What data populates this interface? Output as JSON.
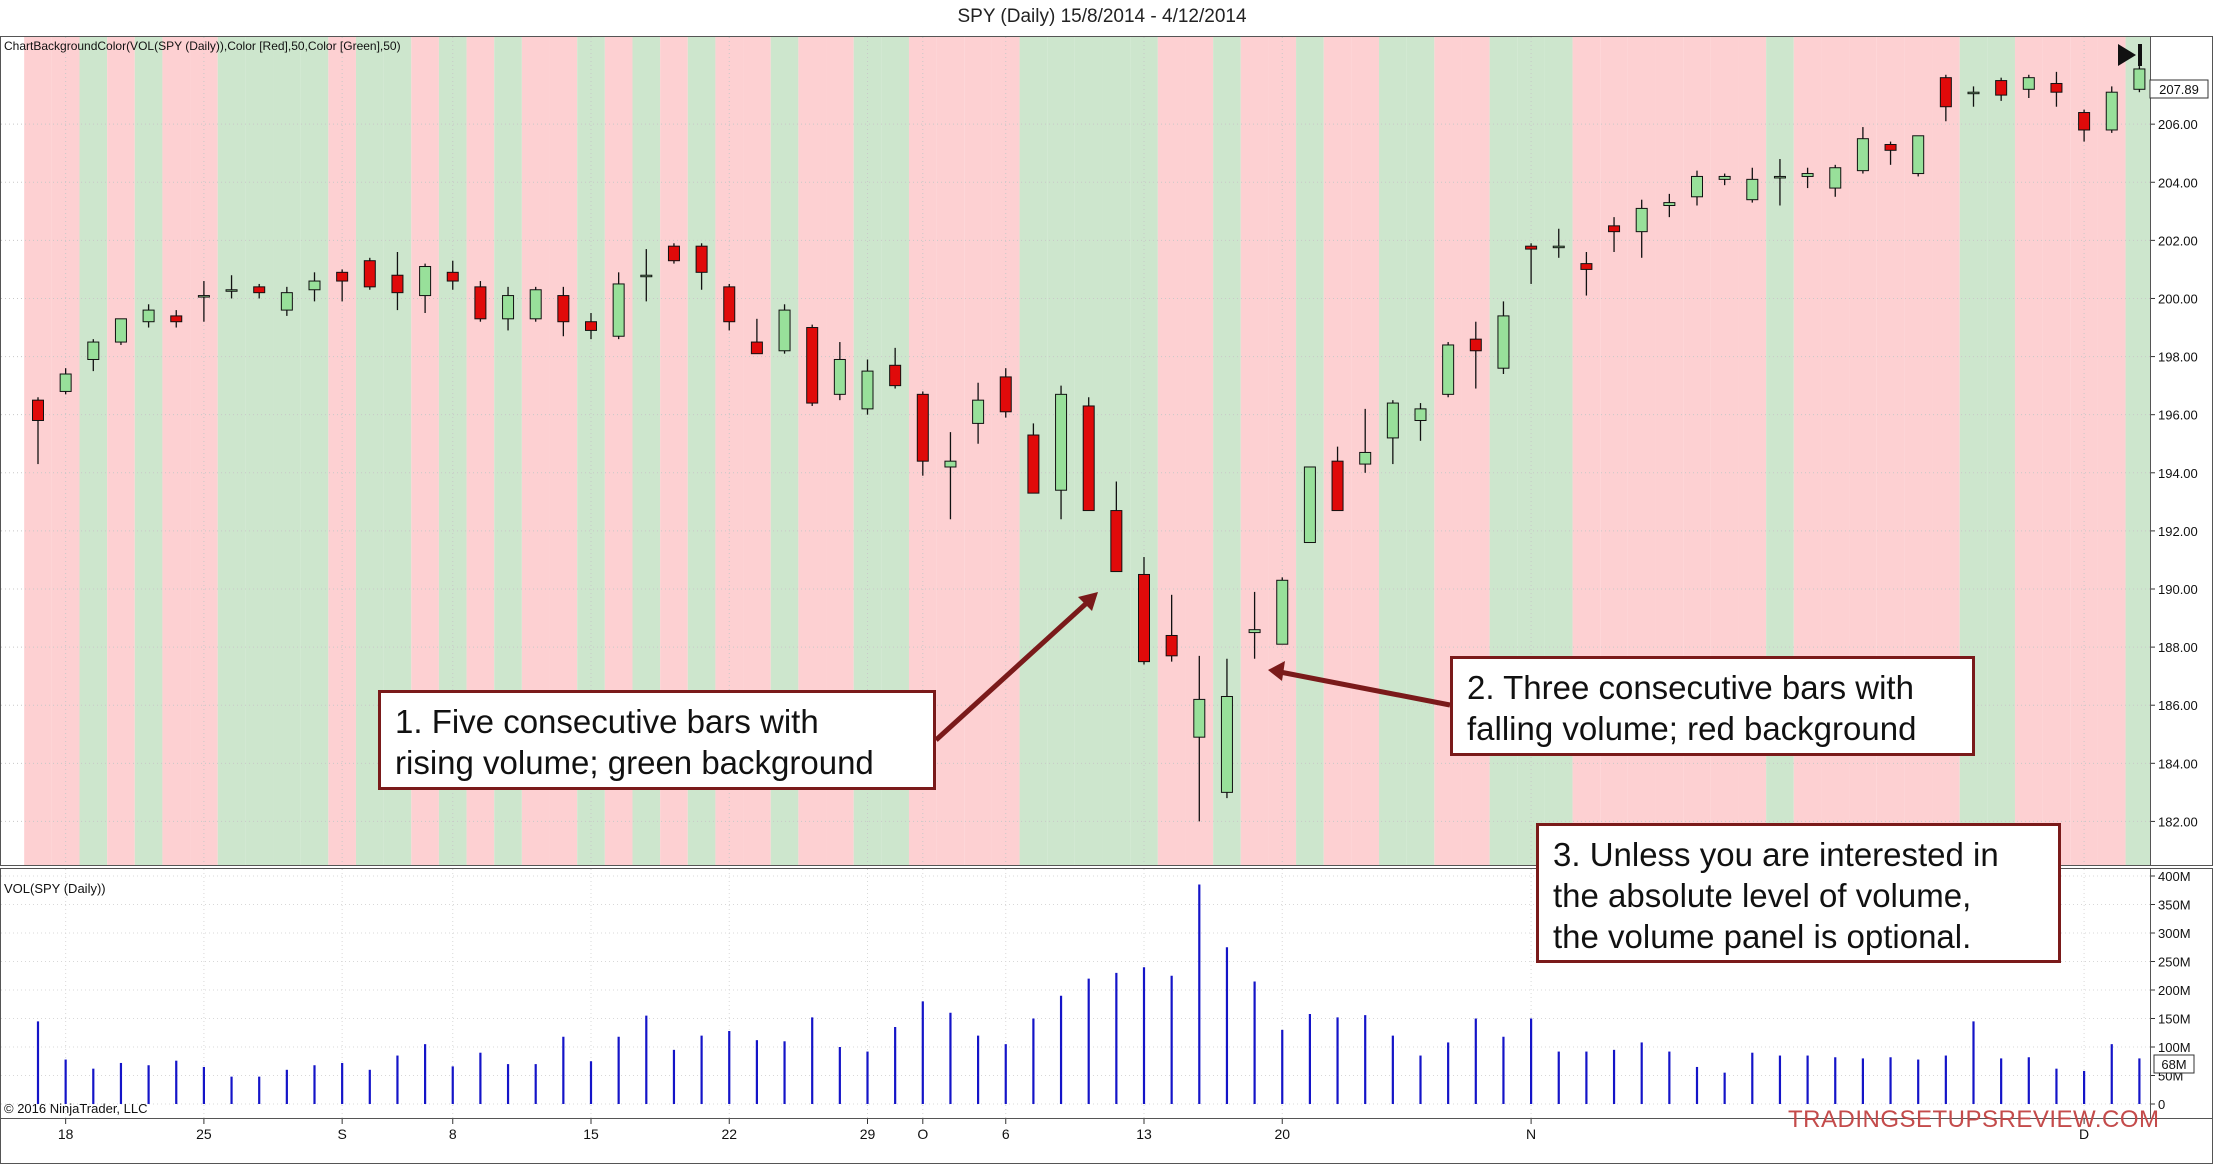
{
  "title": "SPY (Daily)  15/8/2014 - 4/12/2014",
  "indicator_label": "ChartBackgroundColor(VOL(SPY (Daily)),Color [Red],50,Color [Green],50)",
  "volume_panel_label": "VOL(SPY (Daily))",
  "copyright": "© 2016 NinjaTrader, LLC",
  "watermark": "TRADINGSETUPSREVIEW.COM",
  "last_price_tag": "207.89",
  "last_volume_tag": "68M",
  "play_end_icon": "skip-to-end-icon",
  "callouts": [
    {
      "id": "1",
      "lines": [
        "1. Five consecutive bars with",
        "rising volume; green background"
      ]
    },
    {
      "id": "2",
      "lines": [
        "2. Three consecutive bars with",
        "falling volume; red background"
      ]
    },
    {
      "id": "3",
      "lines": [
        "3. Unless you are interested in",
        "the absolute level of volume,",
        "the volume panel is optional."
      ]
    }
  ],
  "colors": {
    "up_candle": "#98e09a",
    "down_candle": "#e00a0a",
    "bg_green": "#cde6cd",
    "bg_red": "#fdd0d2",
    "volume_bar": "#1414c8",
    "callout_border": "#7a1a1a",
    "arrow": "#7a1a1a",
    "watermark": "#c44b4b"
  },
  "chart_data": [
    {
      "type": "candlestick",
      "title": "SPY (Daily)  15/8/2014 - 4/12/2014",
      "ylim": [
        180.5,
        209
      ],
      "yticks": [
        182,
        184,
        186,
        188,
        190,
        192,
        194,
        196,
        198,
        200,
        202,
        204,
        206
      ],
      "ytick_labels": [
        "182.00",
        "184.00",
        "186.00",
        "188.00",
        "190.00",
        "192.00",
        "194.00",
        "196.00",
        "198.00",
        "200.00",
        "202.00",
        "204.00",
        "206.00"
      ],
      "xtick_labels": [
        {
          "i": 1,
          "label": "18"
        },
        {
          "i": 6,
          "label": "25"
        },
        {
          "i": 11,
          "label": "S"
        },
        {
          "i": 15,
          "label": "8"
        },
        {
          "i": 20,
          "label": "15"
        },
        {
          "i": 25,
          "label": "22"
        },
        {
          "i": 30,
          "label": "29"
        },
        {
          "i": 32,
          "label": "O"
        },
        {
          "i": 35,
          "label": "6"
        },
        {
          "i": 40,
          "label": "13"
        },
        {
          "i": 45,
          "label": "20"
        },
        {
          "i": 54,
          "label": "N"
        },
        {
          "i": 74,
          "label": "D"
        }
      ],
      "background": [
        "R",
        "R",
        "G",
        "R",
        "G",
        "R",
        "R",
        "G",
        "G",
        "G",
        "G",
        "R",
        "G",
        "G",
        "R",
        "G",
        "R",
        "G",
        "R",
        "R",
        "G",
        "R",
        "G",
        "R",
        "G",
        "R",
        "R",
        "G",
        "R",
        "R",
        "G",
        "G",
        "R",
        "R",
        "R",
        "R",
        "G",
        "G",
        "G",
        "G",
        "G",
        "R",
        "R",
        "G",
        "R",
        "R",
        "G",
        "R",
        "R",
        "G",
        "G",
        "R",
        "R",
        "G",
        "G",
        "G",
        "R",
        "R",
        "R",
        "R",
        "R",
        "R",
        "R",
        "G",
        "R",
        "R",
        "R",
        "R",
        "R",
        "R",
        "G",
        "G",
        "R",
        "R",
        "R",
        "R",
        "G"
      ],
      "ohlc": [
        [
          196.5,
          196.6,
          194.3,
          195.8
        ],
        [
          196.8,
          197.6,
          196.7,
          197.4
        ],
        [
          197.9,
          198.6,
          197.5,
          198.5
        ],
        [
          198.5,
          199.3,
          198.4,
          199.3
        ],
        [
          199.2,
          199.8,
          199.0,
          199.6
        ],
        [
          199.4,
          199.6,
          199.0,
          199.2
        ],
        [
          200.1,
          200.6,
          199.2,
          200.1
        ],
        [
          200.3,
          200.8,
          200.0,
          200.3
        ],
        [
          200.4,
          200.5,
          200.0,
          200.2
        ],
        [
          199.6,
          200.4,
          199.4,
          200.2
        ],
        [
          200.3,
          200.9,
          199.9,
          200.6
        ],
        [
          200.9,
          201.0,
          199.9,
          200.6
        ],
        [
          201.3,
          201.4,
          200.3,
          200.4
        ],
        [
          200.8,
          201.6,
          199.6,
          200.2
        ],
        [
          200.1,
          201.2,
          199.5,
          201.1
        ],
        [
          200.9,
          201.3,
          200.3,
          200.6
        ],
        [
          200.4,
          200.6,
          199.2,
          199.3
        ],
        [
          199.3,
          200.4,
          198.9,
          200.1
        ],
        [
          199.3,
          200.4,
          199.2,
          200.3
        ],
        [
          200.1,
          200.4,
          198.7,
          199.2
        ],
        [
          199.2,
          199.5,
          198.6,
          198.9
        ],
        [
          198.7,
          200.9,
          198.6,
          200.5
        ],
        [
          200.8,
          201.7,
          199.9,
          200.8
        ],
        [
          201.8,
          201.9,
          201.2,
          201.3
        ],
        [
          201.8,
          201.9,
          200.3,
          200.9
        ],
        [
          200.4,
          200.5,
          198.9,
          199.2
        ],
        [
          198.5,
          199.3,
          198.1,
          198.1
        ],
        [
          198.2,
          199.8,
          198.1,
          199.6
        ],
        [
          199.0,
          199.1,
          196.3,
          196.4
        ],
        [
          196.7,
          198.5,
          196.5,
          197.9
        ],
        [
          196.2,
          197.9,
          196.0,
          197.5
        ],
        [
          197.7,
          198.3,
          196.9,
          197.0
        ],
        [
          196.7,
          196.8,
          193.9,
          194.4
        ],
        [
          194.2,
          195.4,
          192.4,
          194.4
        ],
        [
          195.7,
          197.1,
          195.0,
          196.5
        ],
        [
          197.3,
          197.6,
          195.9,
          196.1
        ],
        [
          195.3,
          195.7,
          193.3,
          193.3
        ],
        [
          193.4,
          197.0,
          192.4,
          196.7
        ],
        [
          196.3,
          196.6,
          192.7,
          192.7
        ],
        [
          192.7,
          193.7,
          190.6,
          190.6
        ],
        [
          190.5,
          191.1,
          187.4,
          187.5
        ],
        [
          188.4,
          189.8,
          187.5,
          187.7
        ],
        [
          184.9,
          187.7,
          182.0,
          186.2
        ],
        [
          183.0,
          187.6,
          182.8,
          186.3
        ],
        [
          188.5,
          189.9,
          187.6,
          188.6
        ],
        [
          188.1,
          190.4,
          188.1,
          190.3
        ],
        [
          191.6,
          194.2,
          191.6,
          194.2
        ],
        [
          194.4,
          194.9,
          192.7,
          192.7
        ],
        [
          194.3,
          196.2,
          194.0,
          194.7
        ],
        [
          195.2,
          196.5,
          194.3,
          196.4
        ],
        [
          195.8,
          196.4,
          195.1,
          196.2
        ],
        [
          196.7,
          198.5,
          196.6,
          198.4
        ],
        [
          198.6,
          199.2,
          196.9,
          198.2
        ],
        [
          197.6,
          199.9,
          197.4,
          199.4
        ],
        [
          201.8,
          201.9,
          200.5,
          201.7
        ],
        [
          201.8,
          202.4,
          201.4,
          201.8
        ],
        [
          201.2,
          201.6,
          200.1,
          201.0
        ],
        [
          202.5,
          202.8,
          201.6,
          202.3
        ],
        [
          202.3,
          203.4,
          201.4,
          203.1
        ],
        [
          203.2,
          203.6,
          202.8,
          203.3
        ],
        [
          203.5,
          204.4,
          203.2,
          204.2
        ],
        [
          204.1,
          204.3,
          203.9,
          204.2
        ],
        [
          203.4,
          204.5,
          203.3,
          204.1
        ],
        [
          204.2,
          204.8,
          203.2,
          204.2
        ],
        [
          204.2,
          204.5,
          203.8,
          204.3
        ],
        [
          203.8,
          204.6,
          203.5,
          204.5
        ],
        [
          204.4,
          205.9,
          204.3,
          205.5
        ],
        [
          205.3,
          205.4,
          204.6,
          205.1
        ],
        [
          204.3,
          205.6,
          204.2,
          205.6
        ],
        [
          207.6,
          207.7,
          206.1,
          206.6
        ],
        [
          207.1,
          207.3,
          206.6,
          207.1
        ],
        [
          207.5,
          207.6,
          206.8,
          207.0
        ],
        [
          207.2,
          207.7,
          206.9,
          207.6
        ],
        [
          207.4,
          207.8,
          206.6,
          207.1
        ],
        [
          206.4,
          206.5,
          205.4,
          205.8
        ],
        [
          205.8,
          207.3,
          205.7,
          207.1
        ],
        [
          207.2,
          208.0,
          207.1,
          207.9
        ]
      ]
    },
    {
      "type": "bar",
      "title": "VOL(SPY (Daily))",
      "ylabel": "",
      "ylim": [
        0,
        400
      ],
      "yticks": [
        0,
        50,
        100,
        150,
        200,
        250,
        300,
        350,
        400
      ],
      "ytick_labels": [
        "0",
        "50M",
        "100M",
        "150M",
        "200M",
        "250M",
        "300M",
        "350M",
        "400M"
      ],
      "values": [
        145,
        78,
        62,
        72,
        68,
        76,
        65,
        48,
        48,
        60,
        68,
        72,
        60,
        85,
        105,
        66,
        90,
        70,
        70,
        118,
        75,
        118,
        155,
        95,
        120,
        128,
        112,
        110,
        152,
        100,
        92,
        135,
        180,
        160,
        120,
        105,
        150,
        190,
        220,
        230,
        240,
        225,
        385,
        275,
        215,
        130,
        158,
        152,
        156,
        120,
        85,
        108,
        150,
        118,
        150,
        92,
        92,
        95,
        108,
        92,
        65,
        55,
        90,
        85,
        85,
        82,
        80,
        82,
        78,
        85,
        145,
        80,
        82,
        62,
        58,
        105,
        80
      ]
    }
  ]
}
